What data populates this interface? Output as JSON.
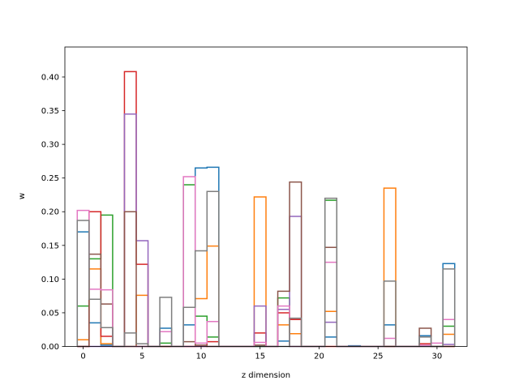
{
  "chart_data": {
    "type": "step",
    "title": "",
    "xlabel": "z dimension",
    "ylabel": "w",
    "xlim": [
      -1.55,
      32.55
    ],
    "ylim": [
      0,
      0.4445
    ],
    "grid": false,
    "x_ticks": [
      0,
      5,
      10,
      15,
      20,
      25,
      30
    ],
    "x_tick_labels": [
      "0",
      "5",
      "10",
      "15",
      "20",
      "25",
      "30"
    ],
    "y_ticks": [
      0.0,
      0.05,
      0.1,
      0.15,
      0.2,
      0.25,
      0.3,
      0.35,
      0.4
    ],
    "y_tick_labels": [
      "0.00",
      "0.05",
      "0.10",
      "0.15",
      "0.20",
      "0.25",
      "0.30",
      "0.35",
      "0.40"
    ],
    "x": [
      0,
      1,
      2,
      3,
      4,
      5,
      6,
      7,
      8,
      9,
      10,
      11,
      12,
      13,
      14,
      15,
      16,
      17,
      18,
      19,
      20,
      21,
      22,
      23,
      24,
      25,
      26,
      27,
      28,
      29,
      30,
      31
    ],
    "series": [
      {
        "color": "#1f77b4",
        "values": [
          0.17,
          0.035,
          0.002,
          0.0,
          0.0,
          0.0,
          0.0,
          0.027,
          0.0,
          0.032,
          0.265,
          0.266,
          0.0,
          0.0,
          0.0,
          0.0,
          0.0,
          0.008,
          0.0,
          0.0,
          0.0,
          0.014,
          0.0,
          0.001,
          0.0,
          0.0,
          0.032,
          0.0,
          0.0,
          0.016,
          0.0,
          0.123
        ]
      },
      {
        "color": "#ff7f0e",
        "values": [
          0.01,
          0.115,
          0.004,
          0.0,
          0.0,
          0.076,
          0.0,
          0.0,
          0.0,
          0.0,
          0.071,
          0.149,
          0.0,
          0.0,
          0.0,
          0.222,
          0.0,
          0.032,
          0.019,
          0.0,
          0.0,
          0.052,
          0.0,
          0.0,
          0.0,
          0.0,
          0.235,
          0.0,
          0.0,
          0.0,
          0.0,
          0.018
        ]
      },
      {
        "color": "#2ca02c",
        "values": [
          0.06,
          0.13,
          0.195,
          0.0,
          0.0,
          0.0,
          0.0,
          0.005,
          0.0,
          0.24,
          0.045,
          0.014,
          0.0,
          0.0,
          0.0,
          0.0,
          0.0,
          0.072,
          0.0,
          0.0,
          0.0,
          0.217,
          0.0,
          0.0,
          0.0,
          0.0,
          0.0,
          0.0,
          0.0,
          0.0,
          0.0,
          0.03
        ]
      },
      {
        "color": "#d62728",
        "values": [
          0.0,
          0.2,
          0.015,
          0.0,
          0.408,
          0.122,
          0.0,
          0.0,
          0.0,
          0.0,
          0.0,
          0.007,
          0.0,
          0.0,
          0.0,
          0.02,
          0.0,
          0.05,
          0.04,
          0.0,
          0.0,
          0.0,
          0.0,
          0.0,
          0.0,
          0.0,
          0.0,
          0.0,
          0.0,
          0.004,
          0.0,
          0.0
        ]
      },
      {
        "color": "#9467bd",
        "values": [
          0.0,
          0.0,
          0.0,
          0.0,
          0.345,
          0.157,
          0.0,
          0.0,
          0.0,
          0.0,
          0.0,
          0.0,
          0.0,
          0.0,
          0.0,
          0.06,
          0.0,
          0.055,
          0.193,
          0.0,
          0.0,
          0.036,
          0.0,
          0.0,
          0.0,
          0.0,
          0.0,
          0.0,
          0.0,
          0.0,
          0.0,
          0.003
        ]
      },
      {
        "color": "#8c564b",
        "values": [
          0.0,
          0.137,
          0.063,
          0.0,
          0.2,
          0.0,
          0.0,
          0.0,
          0.0,
          0.007,
          0.002,
          0.0,
          0.0,
          0.0,
          0.0,
          0.002,
          0.0,
          0.082,
          0.244,
          0.0,
          0.0,
          0.147,
          0.0,
          0.0,
          0.0,
          0.0,
          0.0,
          0.0,
          0.0,
          0.027,
          0.0,
          0.0
        ]
      },
      {
        "color": "#e377c2",
        "values": [
          0.202,
          0.085,
          0.084,
          0.0,
          0.0,
          0.0,
          0.0,
          0.022,
          0.0,
          0.252,
          0.005,
          0.037,
          0.0,
          0.0,
          0.0,
          0.006,
          0.0,
          0.06,
          0.0,
          0.0,
          0.0,
          0.125,
          0.0,
          0.0,
          0.0,
          0.0,
          0.012,
          0.0,
          0.0,
          0.002,
          0.005,
          0.04
        ]
      },
      {
        "color": "#7f7f7f",
        "values": [
          0.187,
          0.07,
          0.028,
          0.0,
          0.02,
          0.004,
          0.0,
          0.073,
          0.0,
          0.058,
          0.142,
          0.23,
          0.0,
          0.0,
          0.0,
          0.0,
          0.0,
          0.0,
          0.042,
          0.0,
          0.0,
          0.22,
          0.0,
          0.0,
          0.0,
          0.0,
          0.097,
          0.0,
          0.0,
          0.014,
          0.0,
          0.115
        ]
      }
    ]
  }
}
